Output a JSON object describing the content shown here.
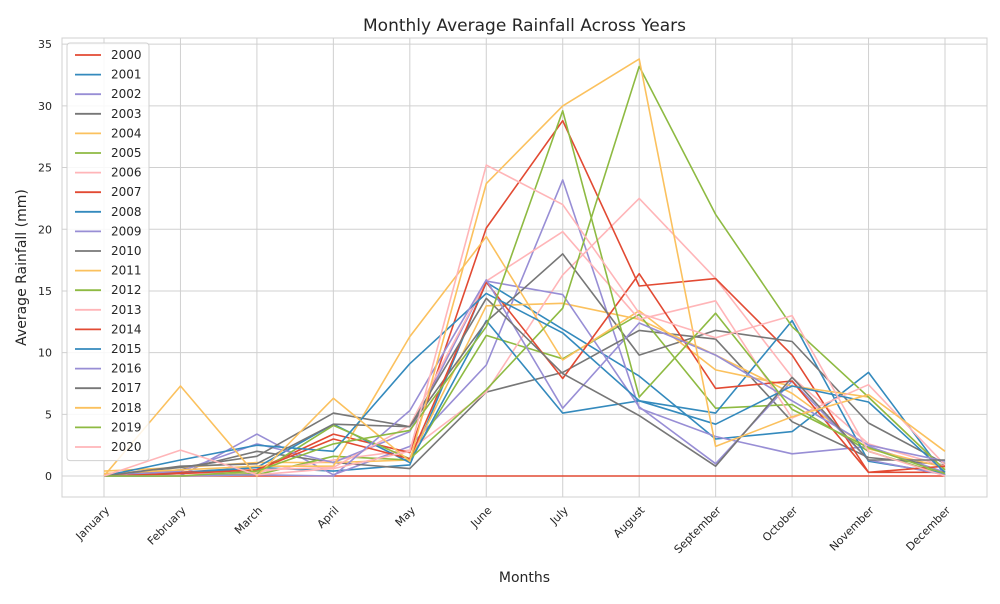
{
  "chart_data": {
    "type": "line",
    "title": "Monthly Average Rainfall Across Years",
    "xlabel": "Months",
    "ylabel": "Average Rainfall (mm)",
    "categories": [
      "January",
      "February",
      "March",
      "April",
      "May",
      "June",
      "July",
      "August",
      "September",
      "October",
      "November",
      "December"
    ],
    "ylim": [
      -1.7,
      35.5
    ],
    "yticks": [
      0,
      5,
      10,
      15,
      20,
      25,
      30,
      35
    ],
    "grid": true,
    "legend_position": "top-left",
    "colors": {
      "red": "#e24a33",
      "blue": "#348abd",
      "purple": "#988ed5",
      "gray": "#777777",
      "yellow": "#fbc15e",
      "green": "#8eba42",
      "pink": "#ffb5b8",
      "grid": "#d0d0d0",
      "text": "#262626"
    },
    "series": [
      {
        "name": "2000",
        "color": "#e24a33",
        "values": [
          0,
          0,
          0,
          0,
          0,
          0,
          0,
          0,
          0,
          0,
          0,
          0
        ]
      },
      {
        "name": "2001",
        "color": "#348abd",
        "values": [
          0,
          0.3,
          0.7,
          0.4,
          0.9,
          15.7,
          11.9,
          8.1,
          3.0,
          3.6,
          8.4,
          0.1
        ]
      },
      {
        "name": "2002",
        "color": "#988ed5",
        "values": [
          0,
          0,
          3.4,
          0.1,
          2.4,
          9.0,
          24.0,
          5.5,
          3.2,
          1.8,
          2.4,
          0.3
        ]
      },
      {
        "name": "2003",
        "color": "#777777",
        "values": [
          0.1,
          0.5,
          2.0,
          1.1,
          0.6,
          6.8,
          8.4,
          11.8,
          11.1,
          4.4,
          1.5,
          0.9
        ]
      },
      {
        "name": "2004",
        "color": "#fbc15e",
        "values": [
          0.4,
          0.7,
          1.1,
          1.1,
          1.3,
          13.8,
          14.0,
          12.7,
          9.8,
          6.7,
          2.2,
          0.7
        ]
      },
      {
        "name": "2005",
        "color": "#8eba42",
        "values": [
          0,
          0,
          0.1,
          1.6,
          1.3,
          11.4,
          9.5,
          13.1,
          5.5,
          5.8,
          2.0,
          0.1
        ]
      },
      {
        "name": "2006",
        "color": "#ffb5b8",
        "values": [
          0.1,
          0.2,
          0.3,
          1.3,
          2.1,
          6.8,
          16.3,
          22.5,
          16.0,
          8.0,
          2.6,
          0.8
        ]
      },
      {
        "name": "2007",
        "color": "#e24a33",
        "values": [
          0,
          0.3,
          0.5,
          3.4,
          1.9,
          20.1,
          28.8,
          15.4,
          16.0,
          9.8,
          0.3,
          0.3
        ]
      },
      {
        "name": "2008",
        "color": "#348abd",
        "values": [
          0,
          0.2,
          0.7,
          4.2,
          1.1,
          12.6,
          5.1,
          6.1,
          5.1,
          12.6,
          1.2,
          0.2
        ]
      },
      {
        "name": "2009",
        "color": "#988ed5",
        "values": [
          0,
          0.4,
          2.6,
          1.1,
          3.6,
          15.8,
          14.7,
          5.6,
          1.0,
          7.7,
          1.3,
          0.1
        ]
      },
      {
        "name": "2010",
        "color": "#777777",
        "values": [
          0.1,
          0.7,
          1.6,
          5.1,
          4.0,
          12.5,
          18.0,
          9.8,
          11.8,
          10.9,
          4.3,
          1.0
        ]
      },
      {
        "name": "2011",
        "color": "#fbc15e",
        "values": [
          0.2,
          0.5,
          0.8,
          0.8,
          11.3,
          19.4,
          9.4,
          13.4,
          8.6,
          7.3,
          6.4,
          0.5
        ]
      },
      {
        "name": "2012",
        "color": "#8eba42",
        "values": [
          0,
          0,
          0.2,
          4.1,
          1.4,
          7.0,
          13.6,
          33.2,
          21.2,
          12.1,
          6.4,
          0.5
        ]
      },
      {
        "name": "2013",
        "color": "#ffb5b8",
        "values": [
          0.1,
          0,
          0.5,
          0.7,
          4.1,
          15.8,
          19.8,
          12.7,
          14.2,
          4.7,
          7.4,
          0.9
        ]
      },
      {
        "name": "2014",
        "color": "#e24a33",
        "values": [
          0,
          0.2,
          0.5,
          3.0,
          1.4,
          15.7,
          7.9,
          16.4,
          7.1,
          7.7,
          0.3,
          0.8
        ]
      },
      {
        "name": "2015",
        "color": "#348abd",
        "values": [
          0,
          1.3,
          2.5,
          2.0,
          9.1,
          14.8,
          11.6,
          6.1,
          4.2,
          7.3,
          6.0,
          0.3
        ]
      },
      {
        "name": "2016",
        "color": "#988ed5",
        "values": [
          0,
          0,
          0.1,
          0,
          5.3,
          15.9,
          5.5,
          12.4,
          9.8,
          6.1,
          2.5,
          1.2
        ]
      },
      {
        "name": "2017",
        "color": "#777777",
        "values": [
          0,
          0.8,
          1.0,
          4.2,
          4.0,
          14.4,
          8.3,
          4.9,
          0.8,
          8.0,
          1.3,
          1.3
        ]
      },
      {
        "name": "2018",
        "color": "#fbc15e",
        "values": [
          0,
          7.3,
          0,
          6.3,
          1.2,
          23.7,
          30.0,
          33.8,
          2.4,
          4.8,
          6.6,
          2.0
        ]
      },
      {
        "name": "2019",
        "color": "#8eba42",
        "values": [
          0,
          0,
          0.4,
          2.6,
          3.7,
          12.1,
          29.6,
          6.4,
          13.2,
          5.4,
          2.3,
          0.2
        ]
      },
      {
        "name": "2020",
        "color": "#ffb5b8",
        "values": [
          0,
          2.1,
          0.1,
          0.6,
          2.0,
          25.2,
          22.0,
          13.2,
          11.2,
          13.0,
          2.0,
          0
        ]
      }
    ]
  }
}
